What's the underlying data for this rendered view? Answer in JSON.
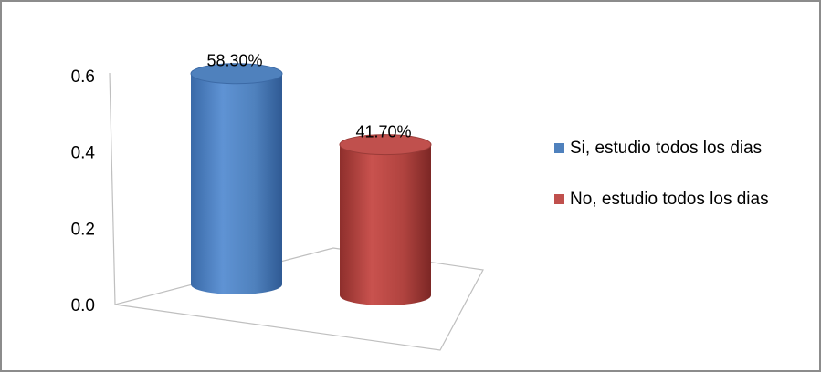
{
  "chart_data": {
    "type": "bar",
    "style": "3d-cylinder",
    "categories": [
      "Si, estudio todos los dias",
      "No, estudio todos los dias"
    ],
    "values": [
      0.583,
      0.417
    ],
    "data_labels": [
      "58.30%",
      "41.70%"
    ],
    "colors": [
      "#4f81bd",
      "#c0504d"
    ],
    "y_ticks": [
      "0.0",
      "0.2",
      "0.4",
      "0.6"
    ],
    "ylim": [
      0,
      0.6
    ],
    "legend_position": "right",
    "grid": false
  }
}
